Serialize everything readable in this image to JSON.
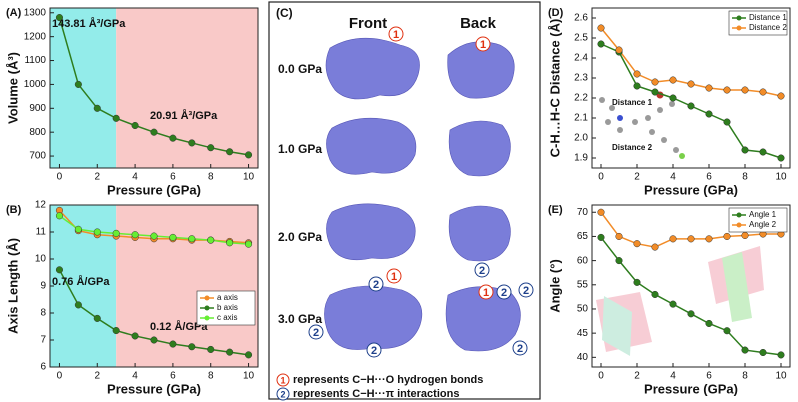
{
  "chart_data": [
    {
      "type": "line",
      "title": "(A)",
      "x_label": "Pressure (GPa)",
      "y_label": "Volume (Å³)",
      "x": [
        0,
        1,
        2,
        3,
        4,
        5,
        6,
        7,
        8,
        9,
        10
      ],
      "values": [
        1280,
        1000,
        900,
        858,
        828,
        800,
        775,
        755,
        735,
        718,
        705
      ],
      "color": "#2e7d1e",
      "xlim": [
        -0.5,
        10.5
      ],
      "ylim": [
        650,
        1320
      ],
      "xticks": [
        0,
        2,
        4,
        6,
        8,
        10
      ],
      "yticks": [
        700,
        800,
        900,
        1000,
        1100,
        1200,
        1300
      ],
      "regions": [
        {
          "xlim": [
            -0.5,
            3
          ],
          "color": "#93ecea"
        },
        {
          "xlim": [
            3,
            10.5
          ],
          "color": "#f9c9c8"
        }
      ],
      "annotations": [
        "143.81 Å³/GPa",
        "20.91 Å³/GPa"
      ]
    },
    {
      "type": "line",
      "title": "(B)",
      "x_label": "Pressure (GPa)",
      "y_label": "Axis Length (Å)",
      "x": [
        0,
        1,
        2,
        3,
        4,
        5,
        6,
        7,
        8,
        9,
        10
      ],
      "series": [
        {
          "name": "a axis",
          "color": "#f28c28",
          "values": [
            11.8,
            11.05,
            10.9,
            10.85,
            10.8,
            10.75,
            10.75,
            10.7,
            10.7,
            10.65,
            10.6
          ]
        },
        {
          "name": "b axis",
          "color": "#2e7d1e",
          "values": [
            9.6,
            8.3,
            7.8,
            7.35,
            7.15,
            7.0,
            6.85,
            6.75,
            6.65,
            6.55,
            6.45
          ]
        },
        {
          "name": "c axis",
          "color": "#66ee33",
          "values": [
            11.6,
            11.1,
            11.0,
            10.95,
            10.9,
            10.85,
            10.8,
            10.75,
            10.7,
            10.6,
            10.55
          ]
        }
      ],
      "xlim": [
        -0.5,
        10.5
      ],
      "ylim": [
        6,
        12
      ],
      "xticks": [
        0,
        2,
        4,
        6,
        8,
        10
      ],
      "yticks": [
        6,
        7,
        8,
        9,
        10,
        11,
        12
      ],
      "regions": [
        {
          "xlim": [
            -0.5,
            3
          ],
          "color": "#93ecea"
        },
        {
          "xlim": [
            3,
            10.5
          ],
          "color": "#f9c9c8"
        }
      ],
      "legend": "center right",
      "annotations": [
        "0.76 Å/GPa",
        "0.12 Å/GPa"
      ]
    },
    {
      "type": "line",
      "title": "(D)",
      "x_label": "Pressure (GPa)",
      "y_label": "C-H…H-C Distance (Å)",
      "x": [
        0,
        1,
        2,
        3,
        4,
        5,
        6,
        7,
        8,
        9,
        10
      ],
      "series": [
        {
          "name": "Distance 1",
          "color": "#2e7d1e",
          "values": [
            2.47,
            2.43,
            2.26,
            2.23,
            2.2,
            2.16,
            2.12,
            2.08,
            1.94,
            1.93,
            1.9
          ]
        },
        {
          "name": "Distance 2",
          "color": "#f28c28",
          "values": [
            2.55,
            2.44,
            2.32,
            2.28,
            2.29,
            2.27,
            2.25,
            2.24,
            2.24,
            2.23,
            2.21
          ]
        }
      ],
      "xlim": [
        -0.5,
        10.5
      ],
      "ylim": [
        1.85,
        2.65
      ],
      "xticks": [
        0,
        2,
        4,
        6,
        8,
        10
      ],
      "yticks": [
        {
          "value": 1.9,
          "label": "1.9"
        },
        {
          "value": 2,
          "label": "2.0"
        },
        {
          "value": 2.1,
          "label": "2.1"
        },
        {
          "value": 2.2,
          "label": "2.2"
        },
        {
          "value": 2.3,
          "label": "2.3"
        },
        {
          "value": 2.4,
          "label": "2.4"
        },
        {
          "value": 2.5,
          "label": "2.5"
        },
        {
          "value": 2.6,
          "label": "2.6"
        }
      ],
      "legend": "upper right",
      "inset_labels": [
        "Distance 1",
        "Distance 2"
      ]
    },
    {
      "type": "line",
      "title": "(E)",
      "x_label": "Pressure (GPa)",
      "y_label": "Angle (°)",
      "x": [
        0,
        1,
        2,
        3,
        4,
        5,
        6,
        7,
        8,
        9,
        10
      ],
      "series": [
        {
          "name": "Angle 1",
          "color": "#2e7d1e",
          "values": [
            64.8,
            60,
            55.5,
            53,
            51,
            49,
            47,
            45.5,
            41.5,
            41,
            40.5
          ]
        },
        {
          "name": "Angle 2",
          "color": "#f28c28",
          "values": [
            70,
            65,
            63.5,
            62.8,
            64.5,
            64.5,
            64.5,
            65,
            65.2,
            65.5,
            65.5
          ]
        }
      ],
      "xlim": [
        -0.5,
        10.5
      ],
      "ylim": [
        38,
        71.5
      ],
      "xticks": [
        0,
        2,
        4,
        6,
        8,
        10
      ],
      "yticks": [
        40,
        45,
        50,
        55,
        60,
        65,
        70
      ],
      "legend": "upper right"
    }
  ],
  "panel_c": {
    "title": "(C)",
    "columns": [
      "Front",
      "Back"
    ],
    "rows": [
      "0.0 GPa",
      "1.0 GPa",
      "2.0 GPa",
      "3.0 GPa"
    ],
    "markers": [
      "1",
      "2"
    ],
    "legend": [
      "represents C−H···O hydrogen bonds",
      "represents C−H···π interactions"
    ]
  }
}
